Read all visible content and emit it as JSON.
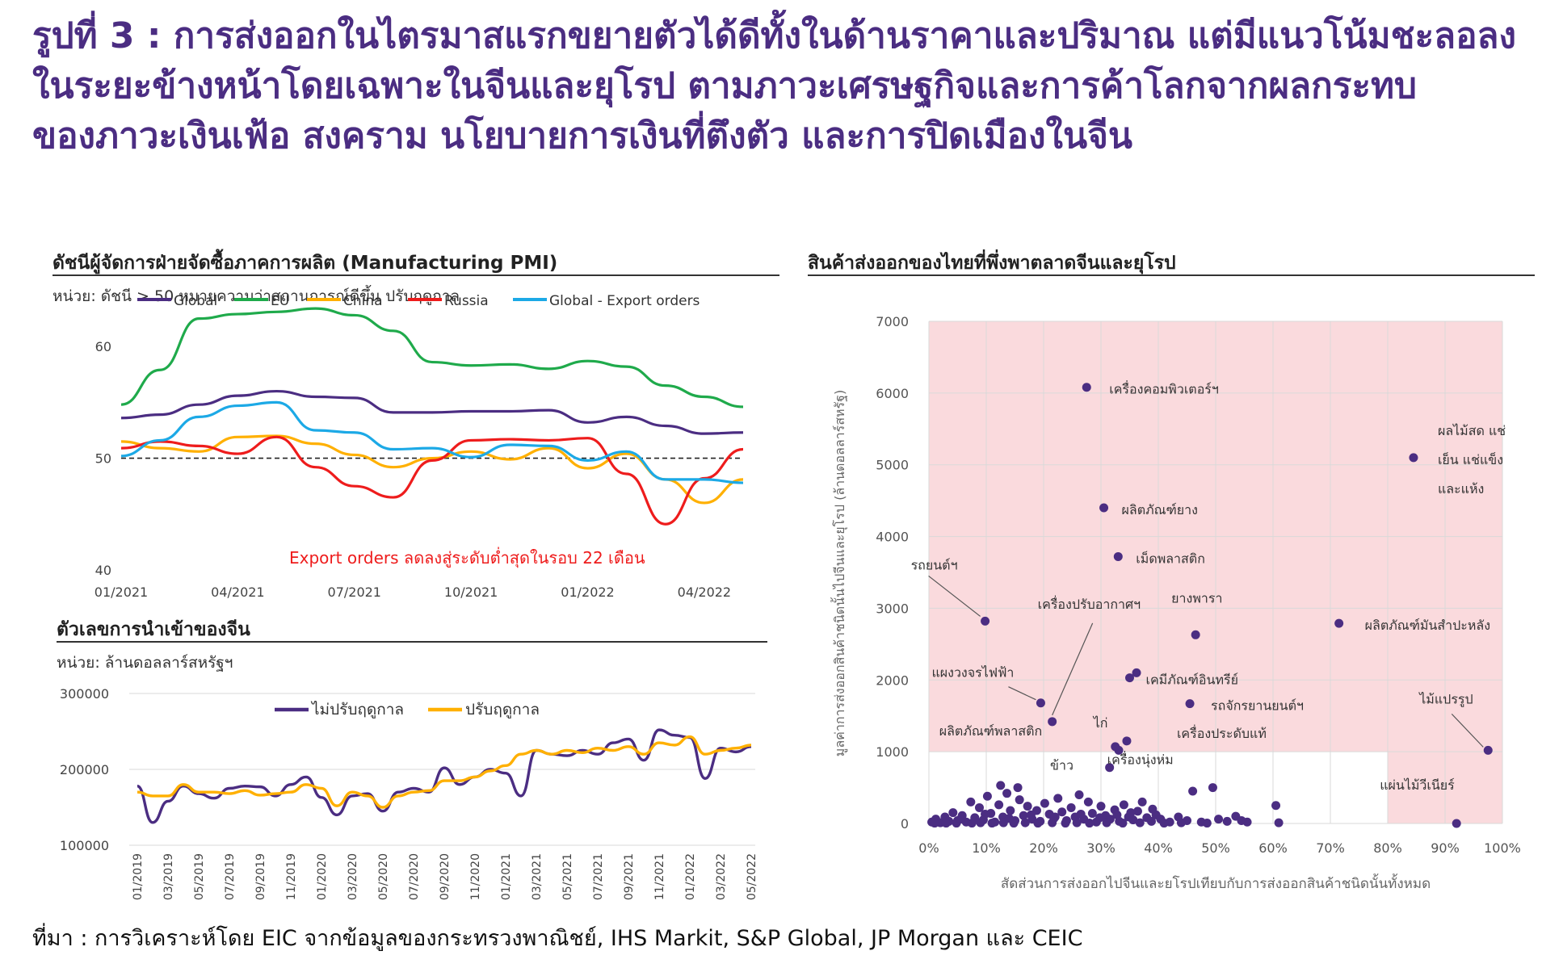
{
  "headline": {
    "line1": "รูปที่ 3 : การส่งออกในไตรมาสแรกขยายตัวได้ดีทั้งในด้านราคาและปริมาณ แต่มีแนวโน้มชะลอลง",
    "line2": "ในระยะข้างหน้าโดยเฉพาะในจีนและยุโรป ตามภาวะเศรษฐกิจและการค้าโลกจากผลกระทบ",
    "line3": "ของภาวะเงินเฟ้อ สงคราม นโยบายการเงินที่ตึงตัว และการปิดเมืองในจีน"
  },
  "source": "ที่มา : การวิเคราะห์โดย EIC จากข้อมูลของกระทรวงพาณิชย์, IHS Markit, S&P Global, JP Morgan และ CEIC",
  "chart_data": [
    {
      "id": "pmi",
      "type": "line",
      "title": "ดัชนีผู้จัดการฝ่ายจัดซื้อภาคการผลิต (Manufacturing PMI)",
      "subtitle": "หน่วย: ดัชนี > 50 หมายความว่าสถานการณ์ดีขึ้น ปรับฤดูกาล",
      "x": [
        "01/2021",
        "02/2021",
        "03/2021",
        "04/2021",
        "05/2021",
        "06/2021",
        "07/2021",
        "08/2021",
        "09/2021",
        "10/2021",
        "11/2021",
        "12/2021",
        "01/2022",
        "02/2022",
        "03/2022",
        "04/2022",
        "05/2022"
      ],
      "x_tick_labels": [
        "01/2021",
        "04/2021",
        "07/2021",
        "10/2021",
        "01/2022",
        "04/2022"
      ],
      "y_ticks": [
        40,
        50,
        60
      ],
      "ylim": [
        40,
        65
      ],
      "reference_line": 50,
      "legend_position": "top",
      "annotation": "Export orders ลดลงสู่ระดับต่ำสุดในรอบ 22 เดือน",
      "series": [
        {
          "name": "Global",
          "color": "#4b2d82",
          "values": [
            53.6,
            53.9,
            54.8,
            55.6,
            56.0,
            55.5,
            55.4,
            54.1,
            54.1,
            54.2,
            54.2,
            54.3,
            53.2,
            53.7,
            52.9,
            52.2,
            52.3
          ]
        },
        {
          "name": "EU",
          "color": "#1faa4b",
          "values": [
            54.8,
            57.9,
            62.5,
            62.9,
            63.1,
            63.4,
            62.8,
            61.4,
            58.6,
            58.3,
            58.4,
            58.0,
            58.7,
            58.2,
            56.5,
            55.5,
            54.6
          ]
        },
        {
          "name": "China",
          "color": "#ffb000",
          "values": [
            51.5,
            50.9,
            50.6,
            51.9,
            52.0,
            51.3,
            50.3,
            49.2,
            50.0,
            50.6,
            49.9,
            50.9,
            49.1,
            50.4,
            48.1,
            46.0,
            48.1
          ]
        },
        {
          "name": "Russia",
          "color": "#ee1c1c",
          "values": [
            50.9,
            51.5,
            51.1,
            50.4,
            51.9,
            49.2,
            47.5,
            46.5,
            49.8,
            51.6,
            51.7,
            51.6,
            51.8,
            48.6,
            44.1,
            48.2,
            50.8
          ]
        },
        {
          "name": "Global - Export orders",
          "color": "#1ca9e6",
          "values": [
            50.2,
            51.6,
            53.7,
            54.7,
            55.0,
            52.5,
            52.3,
            50.8,
            50.9,
            50.1,
            51.2,
            51.1,
            49.8,
            50.6,
            48.1,
            48.1,
            47.8
          ]
        }
      ]
    },
    {
      "id": "china-imports",
      "type": "line",
      "title": "ตัวเลขการนำเข้าของจีน",
      "subtitle": "หน่วย: ล้านดอลลาร์สหรัฐฯ",
      "x": [
        "01/2019",
        "02/2019",
        "03/2019",
        "04/2019",
        "05/2019",
        "06/2019",
        "07/2019",
        "08/2019",
        "09/2019",
        "10/2019",
        "11/2019",
        "12/2019",
        "01/2020",
        "02/2020",
        "03/2020",
        "04/2020",
        "05/2020",
        "06/2020",
        "07/2020",
        "08/2020",
        "09/2020",
        "10/2020",
        "11/2020",
        "12/2020",
        "01/2021",
        "02/2021",
        "03/2021",
        "04/2021",
        "05/2021",
        "06/2021",
        "07/2021",
        "08/2021",
        "09/2021",
        "10/2021",
        "11/2021",
        "12/2021",
        "01/2022",
        "02/2022",
        "03/2022",
        "04/2022",
        "05/2022"
      ],
      "x_tick_labels": [
        "01/2019",
        "03/2019",
        "05/2019",
        "07/2019",
        "09/2019",
        "11/2019",
        "01/2020",
        "03/2020",
        "05/2020",
        "07/2020",
        "09/2020",
        "11/2020",
        "01/2021",
        "03/2021",
        "05/2021",
        "07/2021",
        "09/2021",
        "11/2021",
        "01/2022",
        "03/2022",
        "05/2022"
      ],
      "y_ticks": [
        100000,
        200000,
        300000
      ],
      "ylim": [
        100000,
        300000
      ],
      "legend_position": "top",
      "series": [
        {
          "name": "ไม่ปรับฤดูกาล",
          "color": "#4b2d82",
          "values": [
            178000,
            130000,
            158000,
            178000,
            168000,
            162000,
            175000,
            178000,
            177000,
            165000,
            180000,
            190000,
            163000,
            140000,
            165000,
            168000,
            145000,
            170000,
            175000,
            170000,
            202000,
            180000,
            190000,
            200000,
            195000,
            165000,
            225000,
            220000,
            218000,
            225000,
            220000,
            235000,
            240000,
            212000,
            252000,
            245000,
            242000,
            188000,
            228000,
            223000,
            230000
          ]
        },
        {
          "name": "ปรับฤดูกาล",
          "color": "#ffb000",
          "values": [
            170000,
            165000,
            165000,
            180000,
            170000,
            170000,
            168000,
            172000,
            166000,
            168000,
            170000,
            180000,
            175000,
            152000,
            170000,
            165000,
            150000,
            165000,
            170000,
            172000,
            185000,
            185000,
            190000,
            198000,
            205000,
            220000,
            225000,
            220000,
            225000,
            222000,
            228000,
            225000,
            230000,
            220000,
            235000,
            232000,
            243000,
            220000,
            225000,
            228000,
            232000
          ]
        }
      ]
    },
    {
      "id": "thai-exports",
      "type": "scatter",
      "title": "สินค้าส่งออกของไทยที่พึ่งพาตลาดจีนและยุโรป",
      "xlabel": "สัดส่วนการส่งออกไปจีนและยุโรปเทียบกับการส่งออกสินค้าชนิดนั้นทั้งหมด",
      "ylabel": "มูลค่าการส่งออกสินค้าชนิดนั้นไปจีนและยุโรป (ล้านดอลลาร์สหรัฐ)",
      "x_ticks": [
        "0%",
        "10%",
        "20%",
        "30%",
        "40%",
        "50%",
        "60%",
        "70%",
        "80%",
        "90%",
        "100%"
      ],
      "y_ticks": [
        0,
        1000,
        2000,
        3000,
        4000,
        5000,
        6000,
        7000
      ],
      "xlim": [
        0,
        100
      ],
      "ylim": [
        0,
        7000
      ],
      "highlight_regions": [
        {
          "x": [
            0,
            100
          ],
          "y": [
            1000,
            7000
          ],
          "color": "#fadadd"
        },
        {
          "x": [
            80,
            100
          ],
          "y": [
            0,
            1000
          ],
          "color": "#fadadd"
        }
      ],
      "point_color": "#4b2d82",
      "labeled_points": [
        {
          "label": "เครื่องคอมพิวเตอร์ฯ",
          "x": 27.5,
          "y": 6080
        },
        {
          "label": "ผลไม้สด แช่",
          "x": 84.5,
          "y": 5100
        },
        {
          "label": "เย็น แช่แข็ง",
          "x": 84.5,
          "y": 5100
        },
        {
          "label": "และแห้ง",
          "x": 84.5,
          "y": 5100
        },
        {
          "label": "ผลิตภัณฑ์ยาง",
          "x": 30.5,
          "y": 4400
        },
        {
          "label": "เม็ดพลาสติก",
          "x": 33,
          "y": 3720
        },
        {
          "label": "รถยนต์ฯ",
          "x": 9.8,
          "y": 2820
        },
        {
          "label": "ยางพารา",
          "x": 46.5,
          "y": 2630
        },
        {
          "label": "เครื่องปรับอากาศฯ",
          "x": 21.5,
          "y": 1420
        },
        {
          "label": "ผลิตภัณฑ์มันสำปะหลัง",
          "x": 71.5,
          "y": 2790
        },
        {
          "label": "แผงวงจรไฟฟ้า",
          "x": 19.5,
          "y": 1680
        },
        {
          "label": "เคมีภัณฑ์อินทรีย์",
          "x": 35,
          "y": 2030
        },
        {
          "label": "รถจักรยานยนต์ฯ",
          "x": 45.5,
          "y": 1670
        },
        {
          "label": "ไม้แปรรูป",
          "x": 97.5,
          "y": 1020
        },
        {
          "label": "ไก่",
          "x": 32.5,
          "y": 1070
        },
        {
          "label": "ผลิตภัณฑ์พลาสติก",
          "x": 12.5,
          "y": 530
        },
        {
          "label": "เครื่องประดับแท้",
          "x": 34.5,
          "y": 1150
        },
        {
          "label": "ข้าว",
          "x": 15.5,
          "y": 500
        },
        {
          "label": "เครื่องนุ่งห่ม",
          "x": 31.5,
          "y": 780
        },
        {
          "label": "แผ่นไม้วีเนียร์",
          "x": 92,
          "y": 0
        }
      ],
      "other_points": [
        {
          "x": 36.2,
          "y": 2100
        },
        {
          "x": 33.1,
          "y": 1020
        },
        {
          "x": 0.5,
          "y": 20
        },
        {
          "x": 1.2,
          "y": 60
        },
        {
          "x": 2.0,
          "y": 10
        },
        {
          "x": 2.8,
          "y": 90
        },
        {
          "x": 3.5,
          "y": 30
        },
        {
          "x": 4.2,
          "y": 150
        },
        {
          "x": 5.0,
          "y": 40
        },
        {
          "x": 5.8,
          "y": 110
        },
        {
          "x": 6.5,
          "y": 20
        },
        {
          "x": 7.3,
          "y": 300
        },
        {
          "x": 8.0,
          "y": 80
        },
        {
          "x": 8.8,
          "y": 220
        },
        {
          "x": 9.5,
          "y": 50
        },
        {
          "x": 10.2,
          "y": 380
        },
        {
          "x": 10.8,
          "y": 140
        },
        {
          "x": 11.5,
          "y": 20
        },
        {
          "x": 12.2,
          "y": 260
        },
        {
          "x": 12.9,
          "y": 90
        },
        {
          "x": 13.6,
          "y": 420
        },
        {
          "x": 14.2,
          "y": 180
        },
        {
          "x": 15.0,
          "y": 40
        },
        {
          "x": 15.8,
          "y": 330
        },
        {
          "x": 16.5,
          "y": 110
        },
        {
          "x": 17.2,
          "y": 240
        },
        {
          "x": 18.0,
          "y": 60
        },
        {
          "x": 18.8,
          "y": 180
        },
        {
          "x": 19.4,
          "y": 30
        },
        {
          "x": 20.2,
          "y": 280
        },
        {
          "x": 21.0,
          "y": 130
        },
        {
          "x": 21.8,
          "y": 70
        },
        {
          "x": 22.5,
          "y": 350
        },
        {
          "x": 23.2,
          "y": 160
        },
        {
          "x": 24.0,
          "y": 40
        },
        {
          "x": 24.8,
          "y": 220
        },
        {
          "x": 25.5,
          "y": 90
        },
        {
          "x": 26.2,
          "y": 400
        },
        {
          "x": 27.0,
          "y": 60
        },
        {
          "x": 27.8,
          "y": 300
        },
        {
          "x": 28.5,
          "y": 140
        },
        {
          "x": 29.2,
          "y": 20
        },
        {
          "x": 30.0,
          "y": 240
        },
        {
          "x": 30.8,
          "y": 110
        },
        {
          "x": 31.6,
          "y": 60
        },
        {
          "x": 32.4,
          "y": 190
        },
        {
          "x": 33.2,
          "y": 30
        },
        {
          "x": 34.0,
          "y": 260
        },
        {
          "x": 34.8,
          "y": 90
        },
        {
          "x": 35.6,
          "y": 50
        },
        {
          "x": 36.4,
          "y": 170
        },
        {
          "x": 37.2,
          "y": 300
        },
        {
          "x": 38.0,
          "y": 80
        },
        {
          "x": 38.8,
          "y": 30
        },
        {
          "x": 39.6,
          "y": 120
        },
        {
          "x": 40.4,
          "y": 60
        },
        {
          "x": 42.0,
          "y": 20
        },
        {
          "x": 43.5,
          "y": 90
        },
        {
          "x": 45.0,
          "y": 40
        },
        {
          "x": 46.0,
          "y": 450
        },
        {
          "x": 47.5,
          "y": 20
        },
        {
          "x": 49.5,
          "y": 500
        },
        {
          "x": 50.5,
          "y": 60
        },
        {
          "x": 52.0,
          "y": 30
        },
        {
          "x": 53.5,
          "y": 100
        },
        {
          "x": 54.5,
          "y": 40
        },
        {
          "x": 55.5,
          "y": 20
        },
        {
          "x": 60.5,
          "y": 250
        },
        {
          "x": 61.0,
          "y": 10
        },
        {
          "x": 1.0,
          "y": 5
        },
        {
          "x": 3.0,
          "y": 5
        },
        {
          "x": 4.8,
          "y": 5
        },
        {
          "x": 7.5,
          "y": 5
        },
        {
          "x": 9.0,
          "y": 10
        },
        {
          "x": 11.0,
          "y": 5
        },
        {
          "x": 13.0,
          "y": 10
        },
        {
          "x": 14.8,
          "y": 5
        },
        {
          "x": 16.8,
          "y": 10
        },
        {
          "x": 19.0,
          "y": 5
        },
        {
          "x": 21.5,
          "y": 10
        },
        {
          "x": 23.8,
          "y": 5
        },
        {
          "x": 25.8,
          "y": 10
        },
        {
          "x": 28.0,
          "y": 5
        },
        {
          "x": 31.0,
          "y": 10
        },
        {
          "x": 33.8,
          "y": 5
        },
        {
          "x": 36.8,
          "y": 10
        },
        {
          "x": 41.0,
          "y": 5
        },
        {
          "x": 44.0,
          "y": 10
        },
        {
          "x": 48.5,
          "y": 5
        },
        {
          "x": 5.5,
          "y": 60
        },
        {
          "x": 9.8,
          "y": 130
        },
        {
          "x": 14.0,
          "y": 70
        },
        {
          "x": 17.8,
          "y": 120
        },
        {
          "x": 22.0,
          "y": 90
        },
        {
          "x": 26.5,
          "y": 130
        },
        {
          "x": 29.8,
          "y": 80
        },
        {
          "x": 32.8,
          "y": 120
        },
        {
          "x": 35.2,
          "y": 150
        },
        {
          "x": 39.0,
          "y": 200
        }
      ]
    }
  ]
}
